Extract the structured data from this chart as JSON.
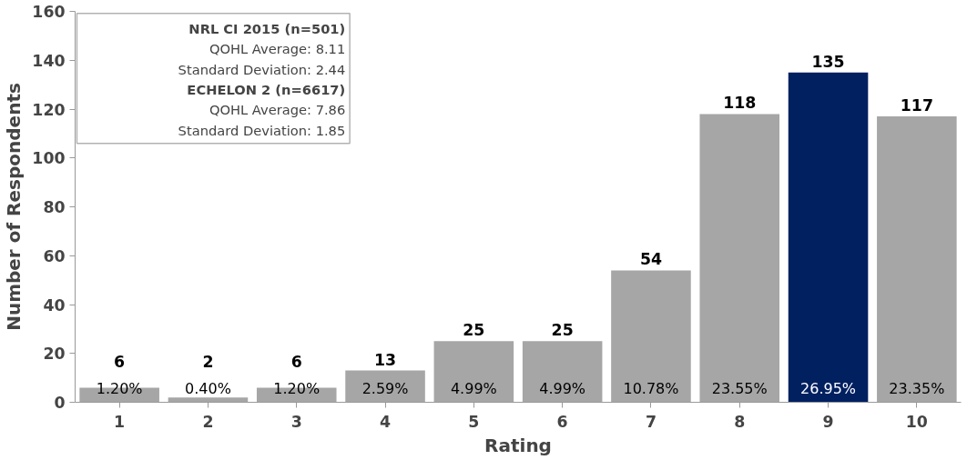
{
  "chart_data": {
    "type": "bar",
    "xlabel": "Rating",
    "ylabel": "Number of Respondents",
    "categories": [
      "1",
      "2",
      "3",
      "4",
      "5",
      "6",
      "7",
      "8",
      "9",
      "10"
    ],
    "values": [
      6,
      2,
      6,
      13,
      25,
      25,
      54,
      118,
      135,
      117
    ],
    "colors": [
      "#a6a6a6",
      "#a6a6a6",
      "#a6a6a6",
      "#a6a6a6",
      "#a6a6a6",
      "#a6a6a6",
      "#a6a6a6",
      "#a6a6a6",
      "#002060",
      "#a6a6a6"
    ],
    "data_labels": true,
    "ylim": [
      0,
      160
    ],
    "yticks": [
      0,
      20,
      40,
      60,
      80,
      100,
      120,
      140,
      160
    ],
    "grid": false,
    "legend": false,
    "annotations": [
      "NRL CI 2015 (n=501)",
      "QOHL Average: 8.11",
      "Standard Deviation: 2.44",
      "ECHELON 2 (n=6617)",
      "QOHL Average: 7.86",
      "Standard Deviation: 1.85",
      "1.20%",
      "0.40%",
      "1.20%",
      "2.59%",
      "4.99%",
      "4.99%",
      "10.78%",
      "23.55%",
      "26.95%",
      "23.35%"
    ]
  }
}
